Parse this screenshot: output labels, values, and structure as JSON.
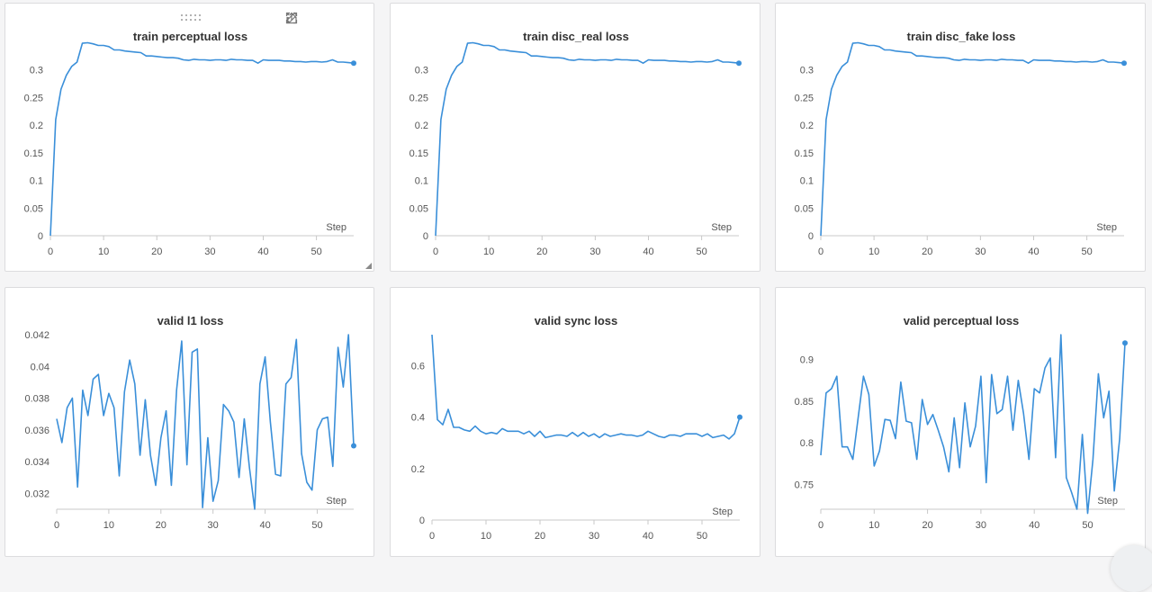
{
  "accent_color": "#3a8fd9",
  "step_label": "Step",
  "toolbar_icons": [
    "share-icon",
    "edit-icon",
    "fullscreen-icon",
    "more-vert-icon"
  ],
  "chart_data": [
    {
      "type": "line",
      "title": "train perceptual loss",
      "xlabel": "Step",
      "xlim": [
        0,
        57
      ],
      "ylim": [
        0,
        0.34
      ],
      "xticks": [
        0,
        10,
        20,
        30,
        40,
        50
      ],
      "yticks": [
        0,
        0.05,
        0.1,
        0.15,
        0.2,
        0.25,
        0.3
      ],
      "ytick_labels": [
        "0",
        "0.05",
        "0.1",
        "0.15",
        "0.2",
        "0.25",
        "0.3"
      ],
      "series": [
        {
          "x": [
            0,
            1,
            2,
            3,
            4,
            5,
            6,
            7,
            8,
            9,
            10,
            11,
            12,
            13,
            14,
            15,
            16,
            17,
            18,
            19,
            20,
            21,
            22,
            23,
            24,
            25,
            26,
            27,
            28,
            29,
            30,
            31,
            32,
            33,
            34,
            35,
            36,
            37,
            38,
            39,
            40,
            41,
            42,
            43,
            44,
            45,
            46,
            47,
            48,
            49,
            50,
            51,
            52,
            53,
            54,
            55,
            56,
            57
          ],
          "y": [
            0,
            0.21,
            0.265,
            0.29,
            0.306,
            0.314,
            0.348,
            0.349,
            0.347,
            0.344,
            0.344,
            0.342,
            0.336,
            0.336,
            0.334,
            0.333,
            0.332,
            0.331,
            0.325,
            0.325,
            0.324,
            0.323,
            0.322,
            0.322,
            0.321,
            0.318,
            0.317,
            0.319,
            0.318,
            0.318,
            0.317,
            0.318,
            0.318,
            0.317,
            0.319,
            0.318,
            0.318,
            0.317,
            0.317,
            0.312,
            0.318,
            0.317,
            0.317,
            0.317,
            0.316,
            0.316,
            0.315,
            0.315,
            0.314,
            0.315,
            0.315,
            0.314,
            0.315,
            0.318,
            0.314,
            0.314,
            0.313,
            0.312
          ]
        }
      ]
    },
    {
      "type": "line",
      "title": "train disc_real loss",
      "xlabel": "Step",
      "xlim": [
        0,
        57
      ],
      "ylim": [
        0,
        0.34
      ],
      "xticks": [
        0,
        10,
        20,
        30,
        40,
        50
      ],
      "yticks": [
        0,
        0.05,
        0.1,
        0.15,
        0.2,
        0.25,
        0.3
      ],
      "ytick_labels": [
        "0",
        "0.05",
        "0.1",
        "0.15",
        "0.2",
        "0.25",
        "0.3"
      ],
      "series": [
        {
          "x": [
            0,
            1,
            2,
            3,
            4,
            5,
            6,
            7,
            8,
            9,
            10,
            11,
            12,
            13,
            14,
            15,
            16,
            17,
            18,
            19,
            20,
            21,
            22,
            23,
            24,
            25,
            26,
            27,
            28,
            29,
            30,
            31,
            32,
            33,
            34,
            35,
            36,
            37,
            38,
            39,
            40,
            41,
            42,
            43,
            44,
            45,
            46,
            47,
            48,
            49,
            50,
            51,
            52,
            53,
            54,
            55,
            56,
            57
          ],
          "y": [
            0,
            0.21,
            0.265,
            0.29,
            0.306,
            0.314,
            0.348,
            0.349,
            0.347,
            0.344,
            0.344,
            0.342,
            0.336,
            0.336,
            0.334,
            0.333,
            0.332,
            0.331,
            0.325,
            0.325,
            0.324,
            0.323,
            0.322,
            0.322,
            0.321,
            0.318,
            0.317,
            0.319,
            0.318,
            0.318,
            0.317,
            0.318,
            0.318,
            0.317,
            0.319,
            0.318,
            0.318,
            0.317,
            0.317,
            0.312,
            0.318,
            0.317,
            0.317,
            0.317,
            0.316,
            0.316,
            0.315,
            0.315,
            0.314,
            0.315,
            0.315,
            0.314,
            0.315,
            0.318,
            0.314,
            0.314,
            0.313,
            0.312
          ]
        }
      ]
    },
    {
      "type": "line",
      "title": "train disc_fake loss",
      "xlabel": "Step",
      "xlim": [
        0,
        57
      ],
      "ylim": [
        0,
        0.34
      ],
      "xticks": [
        0,
        10,
        20,
        30,
        40,
        50
      ],
      "yticks": [
        0,
        0.05,
        0.1,
        0.15,
        0.2,
        0.25,
        0.3
      ],
      "ytick_labels": [
        "0",
        "0.05",
        "0.1",
        "0.15",
        "0.2",
        "0.25",
        "0.3"
      ],
      "series": [
        {
          "x": [
            0,
            1,
            2,
            3,
            4,
            5,
            6,
            7,
            8,
            9,
            10,
            11,
            12,
            13,
            14,
            15,
            16,
            17,
            18,
            19,
            20,
            21,
            22,
            23,
            24,
            25,
            26,
            27,
            28,
            29,
            30,
            31,
            32,
            33,
            34,
            35,
            36,
            37,
            38,
            39,
            40,
            41,
            42,
            43,
            44,
            45,
            46,
            47,
            48,
            49,
            50,
            51,
            52,
            53,
            54,
            55,
            56,
            57
          ],
          "y": [
            0,
            0.21,
            0.265,
            0.29,
            0.306,
            0.314,
            0.348,
            0.349,
            0.347,
            0.344,
            0.344,
            0.342,
            0.336,
            0.336,
            0.334,
            0.333,
            0.332,
            0.331,
            0.325,
            0.325,
            0.324,
            0.323,
            0.322,
            0.322,
            0.321,
            0.318,
            0.317,
            0.319,
            0.318,
            0.318,
            0.317,
            0.318,
            0.318,
            0.317,
            0.319,
            0.318,
            0.318,
            0.317,
            0.317,
            0.312,
            0.318,
            0.317,
            0.317,
            0.317,
            0.316,
            0.316,
            0.315,
            0.315,
            0.314,
            0.315,
            0.315,
            0.314,
            0.315,
            0.318,
            0.314,
            0.314,
            0.313,
            0.312
          ]
        }
      ]
    },
    {
      "type": "line",
      "title": "valid l1 loss",
      "xlabel": "Step",
      "xlim": [
        0,
        57
      ],
      "ylim": [
        0.031,
        0.042
      ],
      "xticks": [
        0,
        10,
        20,
        30,
        40,
        50
      ],
      "yticks": [
        0.032,
        0.034,
        0.036,
        0.038,
        0.04,
        0.042
      ],
      "ytick_labels": [
        "0.032",
        "0.034",
        "0.036",
        "0.038",
        "0.04",
        "0.042"
      ],
      "series": [
        {
          "x": [
            0,
            1,
            2,
            3,
            4,
            5,
            6,
            7,
            8,
            9,
            10,
            11,
            12,
            13,
            14,
            15,
            16,
            17,
            18,
            19,
            20,
            21,
            22,
            23,
            24,
            25,
            26,
            27,
            28,
            29,
            30,
            31,
            32,
            33,
            34,
            35,
            36,
            37,
            38,
            39,
            40,
            41,
            42,
            43,
            44,
            45,
            46,
            47,
            48,
            49,
            50,
            51,
            52,
            53,
            54,
            55,
            56,
            57
          ],
          "y": [
            0.0367,
            0.0352,
            0.0374,
            0.038,
            0.0324,
            0.0385,
            0.0369,
            0.0392,
            0.0395,
            0.0369,
            0.0383,
            0.0374,
            0.0331,
            0.0384,
            0.0404,
            0.0389,
            0.0344,
            0.0379,
            0.0344,
            0.0325,
            0.0355,
            0.0372,
            0.0325,
            0.0385,
            0.0416,
            0.0338,
            0.0409,
            0.0411,
            0.0311,
            0.0355,
            0.0315,
            0.0328,
            0.0376,
            0.0372,
            0.0365,
            0.033,
            0.0367,
            0.0336,
            0.031,
            0.0389,
            0.0406,
            0.0365,
            0.0332,
            0.0331,
            0.0389,
            0.0393,
            0.0417,
            0.0345,
            0.0327,
            0.0322,
            0.036,
            0.0367,
            0.0368,
            0.0337,
            0.0412,
            0.0387,
            0.042,
            0.035
          ]
        }
      ]
    },
    {
      "type": "line",
      "title": "valid sync loss",
      "xlabel": "Step",
      "xlim": [
        0,
        57
      ],
      "ylim": [
        0,
        0.72
      ],
      "xticks": [
        0,
        10,
        20,
        30,
        40,
        50
      ],
      "yticks": [
        0,
        0.2,
        0.4,
        0.6
      ],
      "ytick_labels": [
        "0",
        "0.2",
        "0.4",
        "0.6"
      ],
      "series": [
        {
          "x": [
            0,
            1,
            2,
            3,
            4,
            5,
            6,
            7,
            8,
            9,
            10,
            11,
            12,
            13,
            14,
            15,
            16,
            17,
            18,
            19,
            20,
            21,
            22,
            23,
            24,
            25,
            26,
            27,
            28,
            29,
            30,
            31,
            32,
            33,
            34,
            35,
            36,
            37,
            38,
            39,
            40,
            41,
            42,
            43,
            44,
            45,
            46,
            47,
            48,
            49,
            50,
            51,
            52,
            53,
            54,
            55,
            56,
            57
          ],
          "y": [
            0.72,
            0.39,
            0.37,
            0.43,
            0.36,
            0.36,
            0.35,
            0.345,
            0.365,
            0.345,
            0.335,
            0.34,
            0.335,
            0.355,
            0.345,
            0.345,
            0.345,
            0.335,
            0.345,
            0.325,
            0.345,
            0.32,
            0.325,
            0.33,
            0.33,
            0.325,
            0.34,
            0.325,
            0.34,
            0.325,
            0.335,
            0.32,
            0.335,
            0.325,
            0.33,
            0.335,
            0.33,
            0.33,
            0.325,
            0.33,
            0.345,
            0.335,
            0.325,
            0.32,
            0.33,
            0.33,
            0.325,
            0.335,
            0.335,
            0.335,
            0.325,
            0.335,
            0.32,
            0.325,
            0.33,
            0.315,
            0.335,
            0.4
          ]
        }
      ]
    },
    {
      "type": "line",
      "title": "valid perceptual loss",
      "xlabel": "Step",
      "xlim": [
        0,
        57
      ],
      "ylim": [
        0.72,
        0.93
      ],
      "xticks": [
        0,
        10,
        20,
        30,
        40,
        50
      ],
      "yticks": [
        0.75,
        0.8,
        0.85,
        0.9
      ],
      "ytick_labels": [
        "0.75",
        "0.8",
        "0.85",
        "0.9"
      ],
      "series": [
        {
          "x": [
            0,
            1,
            2,
            3,
            4,
            5,
            6,
            7,
            8,
            9,
            10,
            11,
            12,
            13,
            14,
            15,
            16,
            17,
            18,
            19,
            20,
            21,
            22,
            23,
            24,
            25,
            26,
            27,
            28,
            29,
            30,
            31,
            32,
            33,
            34,
            35,
            36,
            37,
            38,
            39,
            40,
            41,
            42,
            43,
            44,
            45,
            46,
            47,
            48,
            49,
            50,
            51,
            52,
            53,
            54,
            55,
            56,
            57
          ],
          "y": [
            0.785,
            0.86,
            0.865,
            0.88,
            0.795,
            0.795,
            0.78,
            0.83,
            0.88,
            0.858,
            0.772,
            0.79,
            0.828,
            0.827,
            0.805,
            0.873,
            0.826,
            0.824,
            0.78,
            0.852,
            0.822,
            0.834,
            0.815,
            0.795,
            0.765,
            0.83,
            0.77,
            0.848,
            0.795,
            0.82,
            0.88,
            0.752,
            0.882,
            0.835,
            0.84,
            0.88,
            0.815,
            0.875,
            0.835,
            0.78,
            0.865,
            0.86,
            0.89,
            0.902,
            0.782,
            0.93,
            0.758,
            0.74,
            0.72,
            0.81,
            0.715,
            0.78,
            0.883,
            0.83,
            0.862,
            0.742,
            0.805,
            0.92
          ]
        }
      ]
    }
  ]
}
